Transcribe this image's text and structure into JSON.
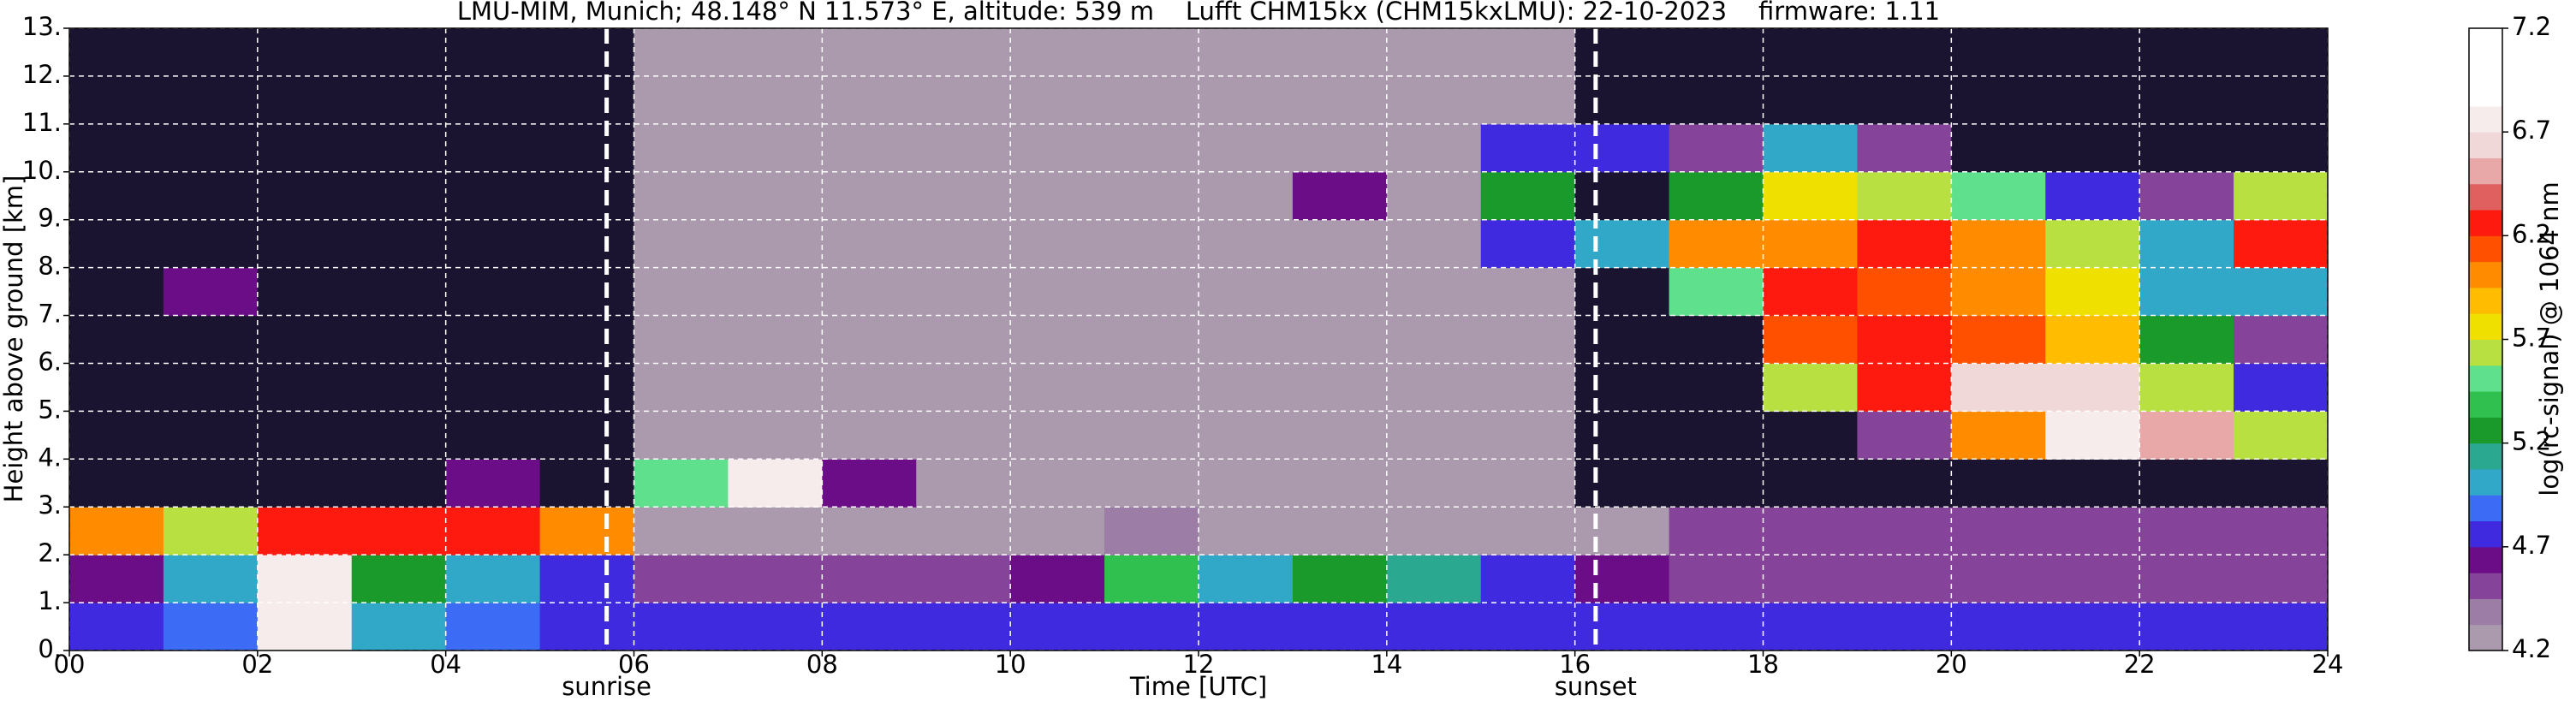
{
  "chart_data": {
    "type": "heatmap",
    "title": "LMU-MIM, Munich; 48.148° N 11.573° E, altitude: 539 m    Lufft CHM15kx (CHM15kxLMU): 22-10-2023    firmware: 1.11",
    "xlabel": "Time [UTC]",
    "ylabel": "Height above ground [km]",
    "xlim": [
      0,
      24
    ],
    "ylim": [
      0,
      13
    ],
    "xticks": [
      {
        "value": 0,
        "label": "00"
      },
      {
        "value": 2,
        "label": "02"
      },
      {
        "value": 4,
        "label": "04"
      },
      {
        "value": 6,
        "label": "06"
      },
      {
        "value": 8,
        "label": "08"
      },
      10,
      12,
      14,
      16,
      18,
      20,
      22,
      24
    ],
    "yticks": [
      {
        "value": 0,
        "label": "0."
      },
      {
        "value": 1,
        "label": "1."
      },
      {
        "value": 2,
        "label": "2."
      },
      {
        "value": 3,
        "label": "3."
      },
      {
        "value": 4,
        "label": "4."
      },
      {
        "value": 5,
        "label": "5."
      },
      {
        "value": 6,
        "label": "6."
      },
      {
        "value": 7,
        "label": "7."
      },
      {
        "value": 8,
        "label": "8."
      },
      {
        "value": 9,
        "label": "9."
      },
      {
        "value": 10,
        "label": "10."
      },
      {
        "value": 11,
        "label": "11."
      },
      {
        "value": 12,
        "label": "12."
      },
      {
        "value": 13,
        "label": "13."
      }
    ],
    "grid": true,
    "xbins": [
      0,
      1,
      2,
      3,
      4,
      5,
      6,
      7,
      8,
      9,
      10,
      11,
      12,
      13,
      14,
      15,
      16,
      17,
      18,
      19,
      20,
      21,
      22,
      23,
      24
    ],
    "ybins": [
      0,
      1,
      2,
      3,
      4,
      5,
      6,
      7,
      8,
      9,
      10,
      11,
      12,
      13
    ],
    "values": [
      [
        4.7,
        4.9,
        6.8,
        5.0,
        4.9,
        4.8,
        4.8,
        4.8,
        4.8,
        4.8,
        4.8,
        4.8,
        4.8,
        4.8,
        4.8,
        4.8,
        4.8,
        4.8,
        4.8,
        4.8,
        4.8,
        4.8,
        4.8,
        4.8
      ],
      [
        4.6,
        5.0,
        6.8,
        5.3,
        5.0,
        4.7,
        4.5,
        4.5,
        4.5,
        4.5,
        4.6,
        5.4,
        5.0,
        5.2,
        5.1,
        4.7,
        4.6,
        4.55,
        4.55,
        4.55,
        4.55,
        4.55,
        4.55,
        4.55
      ],
      [
        6.0,
        5.6,
        6.2,
        6.3,
        6.3,
        6.0,
        4.3,
        4.3,
        4.3,
        4.3,
        4.3,
        4.4,
        4.3,
        4.3,
        4.3,
        4.3,
        4.3,
        4.5,
        4.5,
        4.5,
        4.5,
        4.5,
        4.5,
        4.5
      ],
      [
        4.0,
        4.0,
        4.0,
        4.1,
        4.6,
        4.1,
        5.5,
        6.8,
        4.6,
        4.3,
        4.3,
        4.3,
        4.3,
        4.3,
        4.3,
        4.3,
        4.1,
        4.1,
        4.0,
        4.0,
        4.0,
        4.0,
        4.0,
        4.0
      ],
      [
        4.0,
        4.0,
        4.0,
        4.0,
        4.0,
        4.0,
        4.3,
        4.3,
        4.3,
        4.3,
        4.3,
        4.3,
        4.3,
        4.3,
        4.3,
        4.3,
        4.0,
        4.0,
        4.0,
        4.5,
        6.0,
        6.8,
        6.5,
        5.6
      ],
      [
        4.0,
        4.0,
        4.0,
        4.0,
        4.0,
        4.0,
        4.3,
        4.3,
        4.3,
        4.3,
        4.3,
        4.3,
        4.3,
        4.3,
        4.3,
        4.3,
        4.0,
        4.0,
        5.6,
        6.3,
        6.6,
        6.6,
        5.6,
        4.7
      ],
      [
        4.0,
        4.0,
        4.0,
        4.0,
        4.0,
        4.0,
        4.3,
        4.3,
        4.3,
        4.3,
        4.3,
        4.3,
        4.3,
        4.3,
        4.3,
        4.3,
        4.0,
        4.0,
        6.1,
        6.3,
        6.1,
        5.9,
        5.2,
        4.5
      ],
      [
        4.0,
        4.6,
        4.0,
        4.0,
        4.0,
        4.0,
        4.3,
        4.3,
        4.3,
        4.3,
        4.3,
        4.3,
        4.3,
        4.3,
        4.3,
        4.3,
        4.0,
        5.5,
        6.2,
        6.1,
        6.0,
        5.8,
        5.0,
        5.0
      ],
      [
        4.0,
        4.0,
        4.0,
        4.0,
        4.0,
        4.0,
        4.3,
        4.3,
        4.3,
        4.3,
        4.3,
        4.3,
        4.3,
        4.3,
        4.3,
        4.8,
        5.0,
        6.0,
        6.0,
        6.2,
        6.0,
        5.6,
        5.0,
        6.3
      ],
      [
        4.0,
        4.0,
        4.0,
        4.0,
        4.0,
        4.0,
        4.3,
        4.3,
        4.3,
        4.3,
        4.3,
        4.3,
        4.3,
        4.6,
        4.3,
        5.2,
        4.0,
        5.3,
        5.8,
        5.6,
        5.5,
        4.8,
        4.5,
        5.6
      ],
      [
        4.0,
        4.0,
        4.0,
        4.0,
        4.0,
        4.0,
        4.3,
        4.3,
        4.3,
        4.3,
        4.3,
        4.3,
        4.3,
        4.3,
        4.3,
        4.8,
        4.8,
        4.5,
        5.0,
        4.5,
        4.0,
        4.0,
        4.0,
        4.0
      ],
      [
        4.0,
        4.0,
        4.0,
        4.0,
        4.0,
        4.0,
        4.3,
        4.3,
        4.3,
        4.3,
        4.3,
        4.3,
        4.3,
        4.3,
        4.3,
        4.3,
        4.0,
        4.0,
        4.0,
        4.0,
        4.0,
        4.0,
        4.0,
        4.0
      ],
      [
        4.0,
        4.0,
        4.0,
        4.0,
        4.0,
        4.0,
        4.3,
        4.3,
        4.3,
        4.3,
        4.3,
        4.3,
        4.3,
        4.3,
        4.3,
        4.3,
        4.0,
        4.0,
        4.0,
        4.0,
        4.0,
        4.0,
        4.0,
        4.0
      ]
    ],
    "annotations": [
      {
        "text": "sunrise",
        "x": 5.71
      },
      {
        "text": "sunset",
        "x": 16.22
      }
    ],
    "colorbar": {
      "label": "log(rc-signal) @ 1064 nm",
      "clim": [
        4.2,
        7.2
      ],
      "ticks": [
        4.2,
        4.7,
        5.2,
        5.7,
        6.2,
        6.7,
        7.2
      ],
      "under_color": "#1b1430",
      "colors": [
        "#ab9aae",
        "#9c7da6",
        "#86439a",
        "#6c0d88",
        "#3f2adf",
        "#3c6cf6",
        "#32a8c8",
        "#2aa890",
        "#1a9a2a",
        "#30c050",
        "#5ee08c",
        "#b8e040",
        "#f0e000",
        "#ffbc00",
        "#ff8c00",
        "#ff5000",
        "#ff1a10",
        "#e06060",
        "#e8a8a8",
        "#f0d8d8",
        "#f6ecec",
        "#ffffff",
        "#ffffff",
        "#ffffff"
      ]
    }
  }
}
